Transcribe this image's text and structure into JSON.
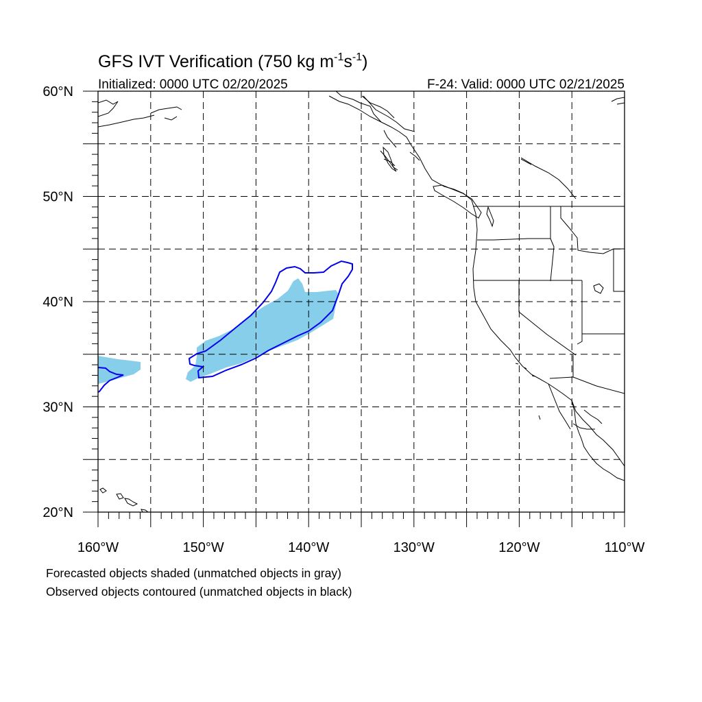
{
  "title": {
    "main": "GFS IVT Verification (750 kg m",
    "exp1": "-1",
    "mid": "s",
    "exp2": "-1",
    "end": ")"
  },
  "initialized": "Initialized: 0000 UTC 02/20/2025",
  "valid": "F-24: Valid: 0000 UTC 02/21/2025",
  "map": {
    "projection": "cylindrical-equidistant",
    "lon_range": [
      -160,
      -110
    ],
    "lat_range": [
      20,
      60
    ],
    "gridlines": "dashed",
    "grid_lon_step": 5,
    "grid_lat_step": 5,
    "lat_labels": [
      {
        "value": 60,
        "text": "60°N"
      },
      {
        "value": 50,
        "text": "50°N"
      },
      {
        "value": 40,
        "text": "40°N"
      },
      {
        "value": 30,
        "text": "30°N"
      },
      {
        "value": 20,
        "text": "20°N"
      }
    ],
    "lon_labels": [
      {
        "value": -160,
        "text": "160°W"
      },
      {
        "value": -150,
        "text": "150°W"
      },
      {
        "value": -140,
        "text": "140°W"
      },
      {
        "value": -130,
        "text": "130°W"
      },
      {
        "value": -120,
        "text": "120°W"
      },
      {
        "value": -110,
        "text": "110°W"
      }
    ]
  },
  "legend": {
    "line1": "Forecasted objects shaded (unmatched objects in gray)",
    "line2": "Observed objects contoured (unmatched objects in black)"
  },
  "colors": {
    "forecast_fill": "#87ceeb",
    "observed_contour": "#0000ee",
    "coastline": "#000000",
    "grid": "#000000"
  }
}
